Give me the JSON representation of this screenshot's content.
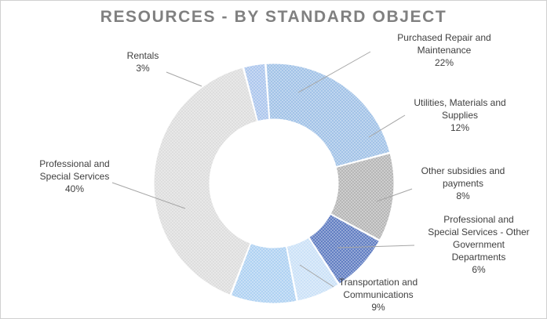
{
  "chart_data": {
    "type": "pie",
    "variant": "donut",
    "title": "RESOURCES - BY STANDARD OBJECT",
    "legend": "none",
    "slices": [
      {
        "label_lines": [
          "Rentals",
          "3%"
        ],
        "value": 3,
        "color": "#a9c4ec"
      },
      {
        "label_lines": [
          "Purchased Repair and",
          "Maintenance",
          "22%"
        ],
        "value": 22,
        "color": "#9ec0e6"
      },
      {
        "label_lines": [
          "Utilities, Materials and",
          "Supplies",
          "12%"
        ],
        "value": 12,
        "color": "#b3b3b3"
      },
      {
        "label_lines": [
          "Other subsidies and",
          "payments",
          "8%"
        ],
        "value": 8,
        "color": "#5b79c0"
      },
      {
        "label_lines": [
          "Professional and",
          "Special Services - Other",
          "Government",
          "Departments",
          "6%"
        ],
        "value": 6,
        "color": "#c9e0f7"
      },
      {
        "label_lines": [
          "Transportation and",
          "Communications",
          "9%"
        ],
        "value": 9,
        "color": "#acd0f2"
      },
      {
        "label_lines": [
          "Professional and",
          "Special Services",
          "40%"
        ],
        "value": 40,
        "color": "#dcdcdc"
      }
    ]
  }
}
